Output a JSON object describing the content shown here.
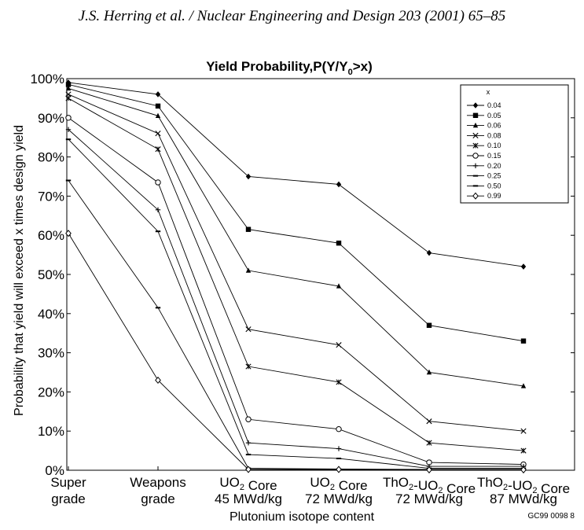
{
  "header": {
    "text": "J.S. Herring et al. / Nuclear Engineering and Design 203 (2001) 65–85"
  },
  "figure_code": "GC99 0098 8",
  "chart_data": {
    "type": "line",
    "title": "Yield Probability,P(Y/Y",
    "title_subscript": "0",
    "title_suffix": ">x)",
    "xlabel": "Plutonium isotope content",
    "ylabel": "Probability that yield will exceed x times design yield",
    "ylim": [
      0,
      100
    ],
    "yticks": [
      "0%",
      "10%",
      "20%",
      "30%",
      "40%",
      "50%",
      "60%",
      "70%",
      "80%",
      "90%",
      "100%"
    ],
    "categories": [
      [
        "Super",
        "grade"
      ],
      [
        "Weapons",
        "grade"
      ],
      [
        "UO",
        "2",
        " Core",
        "45 MWd/kg"
      ],
      [
        "UO",
        "2",
        " Core",
        "72 MWd/kg"
      ],
      [
        "ThO",
        "2",
        "-UO",
        "2",
        " Core",
        "72 MWd/kg"
      ],
      [
        "ThO",
        "2",
        "-UO",
        "2",
        " Core",
        "87 MWd/kg"
      ]
    ],
    "legend_title": "x",
    "series": [
      {
        "name": "0.04",
        "marker": "diamond-filled",
        "values": [
          99,
          96,
          75,
          73,
          55.5,
          52
        ]
      },
      {
        "name": "0.05",
        "marker": "square-filled",
        "values": [
          98.5,
          93,
          61.5,
          58,
          37,
          33
        ]
      },
      {
        "name": "0.06",
        "marker": "triangle-filled",
        "values": [
          97.5,
          90.5,
          51,
          47,
          25,
          21.5
        ]
      },
      {
        "name": "0.08",
        "marker": "x",
        "values": [
          96,
          86,
          36,
          32,
          12.5,
          10
        ]
      },
      {
        "name": "0.10",
        "marker": "asterisk",
        "values": [
          95,
          82,
          26.5,
          22.5,
          7,
          5
        ]
      },
      {
        "name": "0.15",
        "marker": "circle-open",
        "values": [
          90,
          73.5,
          13,
          10.5,
          2,
          1.5
        ]
      },
      {
        "name": "0.20",
        "marker": "plus",
        "values": [
          87,
          66.5,
          7,
          5.5,
          1,
          1
        ]
      },
      {
        "name": "0.25",
        "marker": "dash",
        "values": [
          84.5,
          61,
          4,
          3,
          0.5,
          0.5
        ]
      },
      {
        "name": "0.50",
        "marker": "dash",
        "values": [
          74,
          41.5,
          0.5,
          0.3,
          0.2,
          0.2
        ]
      },
      {
        "name": "0.99",
        "marker": "diamond-open",
        "values": [
          60.5,
          23,
          0.2,
          0.2,
          0.1,
          0.1
        ]
      }
    ]
  }
}
